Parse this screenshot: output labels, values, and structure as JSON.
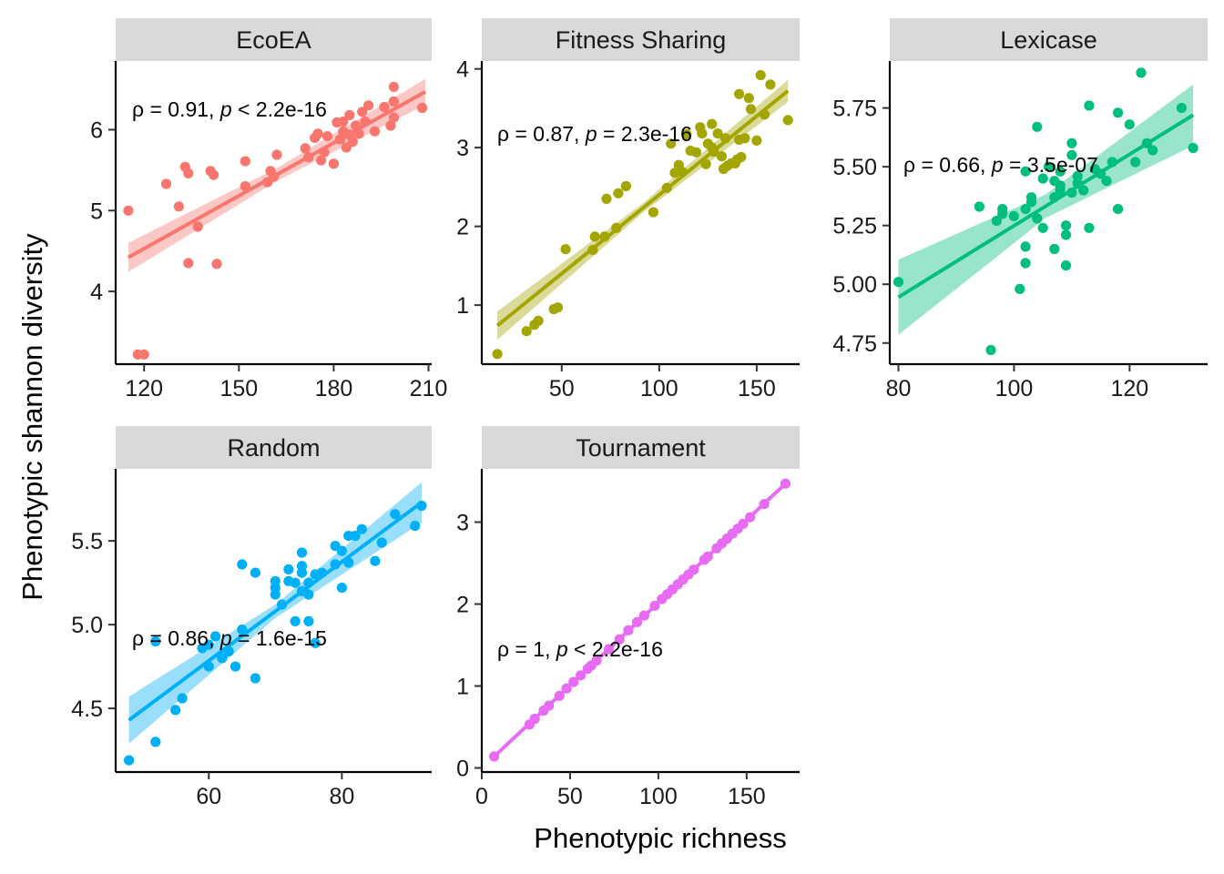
{
  "chart_data": [
    {
      "type": "scatter",
      "panel": "EcoEA",
      "color": "#F8766D",
      "xlim": [
        111,
        211
      ],
      "ylim": [
        3.1,
        6.85
      ],
      "xticks": [
        120,
        150,
        180,
        210
      ],
      "yticks": [
        4,
        5,
        6
      ],
      "annotation": {
        "prefix": "ρ = 0.91, ",
        "p": "p",
        "suffix": " < 2.2e-16"
      },
      "fit": {
        "x": [
          115,
          209
        ],
        "y": [
          4.42,
          6.47
        ],
        "ci": [
          0.18,
          0.08,
          0.16
        ]
      },
      "points": [
        [
          115,
          5.0
        ],
        [
          118,
          3.22
        ],
        [
          120,
          3.22
        ],
        [
          127,
          5.33
        ],
        [
          131,
          5.05
        ],
        [
          133,
          5.54
        ],
        [
          134,
          5.46
        ],
        [
          134,
          4.35
        ],
        [
          137,
          4.8
        ],
        [
          141,
          5.49
        ],
        [
          142,
          5.44
        ],
        [
          143,
          4.34
        ],
        [
          152,
          5.3
        ],
        [
          152,
          5.61
        ],
        [
          159,
          5.35
        ],
        [
          160,
          5.49
        ],
        [
          161,
          5.42
        ],
        [
          162,
          5.69
        ],
        [
          171,
          5.77
        ],
        [
          172,
          5.66
        ],
        [
          174,
          5.9
        ],
        [
          175,
          5.95
        ],
        [
          176,
          5.62
        ],
        [
          177,
          5.72
        ],
        [
          178,
          5.92
        ],
        [
          180,
          5.58
        ],
        [
          181,
          6.09
        ],
        [
          182,
          5.88
        ],
        [
          183,
          5.98
        ],
        [
          183,
          6.1
        ],
        [
          184,
          5.78
        ],
        [
          185,
          5.94
        ],
        [
          185,
          6.18
        ],
        [
          186,
          5.85
        ],
        [
          187,
          6.05
        ],
        [
          188,
          5.95
        ],
        [
          189,
          6.22
        ],
        [
          190,
          6.1
        ],
        [
          191,
          6.3
        ],
        [
          193,
          5.98
        ],
        [
          196,
          6.28
        ],
        [
          198,
          6.05
        ],
        [
          199,
          6.15
        ],
        [
          199,
          6.35
        ],
        [
          199,
          6.53
        ],
        [
          208,
          6.27
        ]
      ]
    },
    {
      "type": "scatter",
      "panel": "Fitness Sharing",
      "color": "#A3A500",
      "xlim": [
        9,
        172
      ],
      "ylim": [
        0.25,
        4.1
      ],
      "xticks": [
        50,
        100,
        150
      ],
      "yticks": [
        1,
        2,
        3,
        4
      ],
      "annotation": {
        "prefix": "ρ = 0.87, ",
        "p": "p",
        "suffix": " = 2.3e-16"
      },
      "fit": {
        "x": [
          17,
          166
        ],
        "y": [
          0.74,
          3.72
        ],
        "ci": [
          0.18,
          0.06,
          0.14
        ]
      },
      "points": [
        [
          17,
          0.38
        ],
        [
          32,
          0.67
        ],
        [
          36,
          0.75
        ],
        [
          38,
          0.8
        ],
        [
          46,
          0.95
        ],
        [
          48,
          0.97
        ],
        [
          52,
          1.71
        ],
        [
          66,
          1.7
        ],
        [
          67,
          1.87
        ],
        [
          72,
          1.87
        ],
        [
          73,
          2.35
        ],
        [
          78,
          1.98
        ],
        [
          79,
          2.42
        ],
        [
          83,
          2.51
        ],
        [
          97,
          2.18
        ],
        [
          104,
          2.49
        ],
        [
          106,
          3.05
        ],
        [
          108,
          2.68
        ],
        [
          110,
          2.78
        ],
        [
          112,
          2.69
        ],
        [
          114,
          3.17
        ],
        [
          116,
          2.96
        ],
        [
          119,
          2.94
        ],
        [
          121,
          3.26
        ],
        [
          122,
          3.18
        ],
        [
          124,
          2.79
        ],
        [
          125,
          3.05
        ],
        [
          127,
          3.3
        ],
        [
          127,
          3.0
        ],
        [
          128,
          2.95
        ],
        [
          130,
          3.18
        ],
        [
          132,
          2.89
        ],
        [
          133,
          2.73
        ],
        [
          134,
          3.12
        ],
        [
          135,
          2.77
        ],
        [
          137,
          2.8
        ],
        [
          139,
          2.8
        ],
        [
          140,
          2.85
        ],
        [
          141,
          3.1
        ],
        [
          141,
          3.68
        ],
        [
          142,
          2.88
        ],
        [
          144,
          3.12
        ],
        [
          146,
          3.63
        ],
        [
          147,
          3.49
        ],
        [
          150,
          3.09
        ],
        [
          152,
          3.92
        ],
        [
          154,
          3.42
        ],
        [
          157,
          3.8
        ],
        [
          166,
          3.35
        ]
      ]
    },
    {
      "type": "scatter",
      "panel": "Lexicase",
      "color": "#00BF7D",
      "xlim": [
        78.5,
        133.5
      ],
      "ylim": [
        4.66,
        5.95
      ],
      "xticks": [
        80,
        100,
        120
      ],
      "yticks": [
        4.75,
        5.0,
        5.25,
        5.5,
        5.75
      ],
      "ytick_labels": [
        "4.75",
        "5.00",
        "5.25",
        "5.50",
        "5.75"
      ],
      "annotation": {
        "prefix": "ρ = 0.66, ",
        "p": "p",
        "suffix": " = 3.5e-07"
      },
      "fit": {
        "x": [
          80,
          131
        ],
        "y": [
          4.945,
          5.72
        ],
        "ci": [
          0.16,
          0.05,
          0.13
        ]
      },
      "points": [
        [
          80,
          5.01
        ],
        [
          94,
          5.33
        ],
        [
          96,
          4.72
        ],
        [
          97,
          5.27
        ],
        [
          98,
          5.32
        ],
        [
          98,
          5.3
        ],
        [
          100,
          5.29
        ],
        [
          101,
          4.98
        ],
        [
          102,
          5.32
        ],
        [
          102,
          5.48
        ],
        [
          102,
          5.16
        ],
        [
          102,
          5.09
        ],
        [
          103,
          5.35
        ],
        [
          103,
          5.37
        ],
        [
          104,
          5.67
        ],
        [
          104,
          5.28
        ],
        [
          105,
          5.45
        ],
        [
          105,
          5.24
        ],
        [
          106,
          5.5
        ],
        [
          107,
          5.44
        ],
        [
          107,
          5.15
        ],
        [
          107,
          5.37
        ],
        [
          108,
          5.48
        ],
        [
          108,
          5.4
        ],
        [
          108,
          5.42
        ],
        [
          109,
          5.21
        ],
        [
          109,
          5.25
        ],
        [
          109,
          5.08
        ],
        [
          110,
          5.39
        ],
        [
          110,
          5.55
        ],
        [
          110,
          5.6
        ],
        [
          111,
          5.43
        ],
        [
          111,
          5.46
        ],
        [
          112,
          5.4
        ],
        [
          113,
          5.76
        ],
        [
          113,
          5.24
        ],
        [
          114,
          5.49
        ],
        [
          115,
          5.47
        ],
        [
          116,
          5.44
        ],
        [
          117,
          5.52
        ],
        [
          118,
          5.73
        ],
        [
          118,
          5.32
        ],
        [
          120,
          5.68
        ],
        [
          121,
          5.52
        ],
        [
          122,
          5.9
        ],
        [
          123,
          5.6
        ],
        [
          124,
          5.57
        ],
        [
          129,
          5.75
        ],
        [
          131,
          5.58
        ]
      ]
    },
    {
      "type": "scatter",
      "panel": "Random",
      "color": "#00B0F6",
      "xlim": [
        46,
        93.5
      ],
      "ylim": [
        4.12,
        5.93
      ],
      "xticks": [
        60,
        80
      ],
      "yticks": [
        4.5,
        5.0,
        5.5
      ],
      "ytick_labels": [
        "4.5",
        "5.0",
        "5.5"
      ],
      "annotation": {
        "prefix": "ρ = 0.86, ",
        "p": "p",
        "suffix": " = 1.6e-15"
      },
      "fit": {
        "x": [
          48,
          92
        ],
        "y": [
          4.43,
          5.73
        ],
        "ci": [
          0.14,
          0.04,
          0.12
        ]
      },
      "points": [
        [
          48,
          4.19
        ],
        [
          52,
          4.3
        ],
        [
          52,
          4.9
        ],
        [
          55,
          4.49
        ],
        [
          56,
          4.56
        ],
        [
          59,
          4.86
        ],
        [
          60,
          4.75
        ],
        [
          60,
          4.88
        ],
        [
          61,
          4.93
        ],
        [
          62,
          4.8
        ],
        [
          63,
          4.84
        ],
        [
          64,
          4.75
        ],
        [
          65,
          4.97
        ],
        [
          65,
          5.36
        ],
        [
          67,
          5.31
        ],
        [
          67,
          4.68
        ],
        [
          70,
          5.26
        ],
        [
          70,
          5.18
        ],
        [
          70,
          5.22
        ],
        [
          71,
          5.12
        ],
        [
          72,
          5.33
        ],
        [
          72,
          5.26
        ],
        [
          73,
          5.02
        ],
        [
          73,
          5.25
        ],
        [
          74,
          5.35
        ],
        [
          74,
          5.43
        ],
        [
          74,
          5.31
        ],
        [
          74,
          5.2
        ],
        [
          75,
          5.18
        ],
        [
          75,
          5.02
        ],
        [
          75,
          5.25
        ],
        [
          76,
          5.3
        ],
        [
          76,
          4.89
        ],
        [
          77,
          5.31
        ],
        [
          79,
          5.36
        ],
        [
          79,
          5.47
        ],
        [
          80,
          5.44
        ],
        [
          80,
          5.22
        ],
        [
          81,
          5.37
        ],
        [
          81,
          5.53
        ],
        [
          82,
          5.53
        ],
        [
          83,
          5.57
        ],
        [
          85,
          5.38
        ],
        [
          86,
          5.49
        ],
        [
          88,
          5.66
        ],
        [
          91,
          5.59
        ],
        [
          92,
          5.71
        ]
      ]
    },
    {
      "type": "scatter",
      "panel": "Tournament",
      "color": "#E76BF3",
      "xlim": [
        0,
        180
      ],
      "ylim": [
        -0.05,
        3.65
      ],
      "xticks": [
        0,
        50,
        100,
        150
      ],
      "yticks": [
        0,
        1,
        2,
        3
      ],
      "annotation": {
        "prefix": "ρ = 1, ",
        "p": "p",
        "suffix": " < 2.2e-16"
      },
      "fit": {
        "x": [
          7,
          172
        ],
        "y": [
          0.14,
          3.47
        ],
        "ci": [
          0.02,
          0.01,
          0.02
        ]
      },
      "points": [
        [
          7,
          0.14
        ],
        [
          27,
          0.53
        ],
        [
          30,
          0.6
        ],
        [
          35,
          0.7
        ],
        [
          38,
          0.76
        ],
        [
          44,
          0.88
        ],
        [
          48,
          0.97
        ],
        [
          52,
          1.05
        ],
        [
          56,
          1.13
        ],
        [
          60,
          1.21
        ],
        [
          62,
          1.25
        ],
        [
          65,
          1.31
        ],
        [
          72,
          1.45
        ],
        [
          78,
          1.57
        ],
        [
          83,
          1.68
        ],
        [
          88,
          1.78
        ],
        [
          92,
          1.86
        ],
        [
          98,
          1.98
        ],
        [
          102,
          2.06
        ],
        [
          105,
          2.12
        ],
        [
          108,
          2.18
        ],
        [
          111,
          2.24
        ],
        [
          114,
          2.3
        ],
        [
          117,
          2.36
        ],
        [
          120,
          2.42
        ],
        [
          126,
          2.54
        ],
        [
          128,
          2.58
        ],
        [
          133,
          2.68
        ],
        [
          136,
          2.74
        ],
        [
          139,
          2.8
        ],
        [
          142,
          2.86
        ],
        [
          145,
          2.92
        ],
        [
          148,
          2.98
        ],
        [
          152,
          3.06
        ],
        [
          160,
          3.22
        ],
        [
          172,
          3.47
        ]
      ]
    }
  ],
  "axis_titles": {
    "x": "Phenotypic richness",
    "y": "Phenotypic shannon diversity"
  }
}
